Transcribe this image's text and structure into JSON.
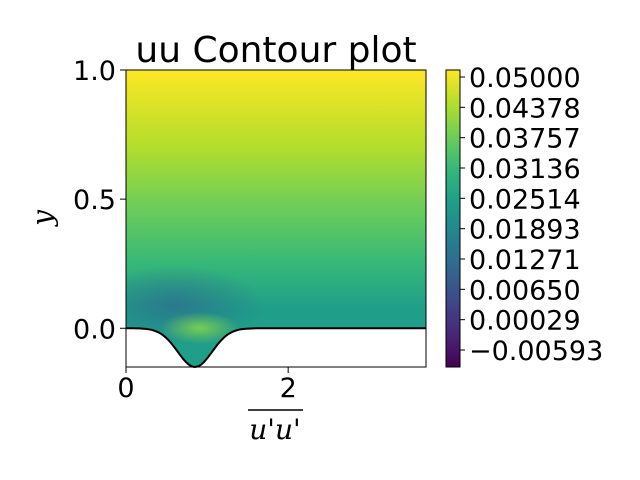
{
  "chart_data": {
    "type": "contour",
    "title": "uu Contour plot",
    "xlabel": "u'u'",
    "ylabel": "y",
    "xlim": [
      0,
      3.7
    ],
    "ylim": [
      -0.15,
      1.0
    ],
    "x_ticks": [
      {
        "value": 0,
        "label": "0"
      },
      {
        "value": 2,
        "label": "2"
      }
    ],
    "y_ticks": [
      {
        "value": 0.0,
        "label": "0.0"
      },
      {
        "value": 0.5,
        "label": "0.5"
      },
      {
        "value": 1.0,
        "label": "1.0"
      }
    ],
    "colorbar": {
      "colormap": "viridis",
      "min": -0.00593,
      "max": 0.05,
      "ticks": [
        "0.05000",
        "0.04378",
        "0.03757",
        "0.03136",
        "0.02514",
        "0.01893",
        "0.01271",
        "0.00650",
        "0.00029",
        "−0.00593"
      ]
    },
    "wall": {
      "bump_center_x": 0.85,
      "bump_depth": 0.15,
      "bump_width": 0.3
    },
    "grid": false,
    "legend": "none"
  },
  "colors": {
    "viridis": [
      "#440154",
      "#482878",
      "#3e4989",
      "#31688e",
      "#26828e",
      "#1f9e89",
      "#35b779",
      "#6ece58",
      "#b5de2b",
      "#fde725"
    ]
  }
}
